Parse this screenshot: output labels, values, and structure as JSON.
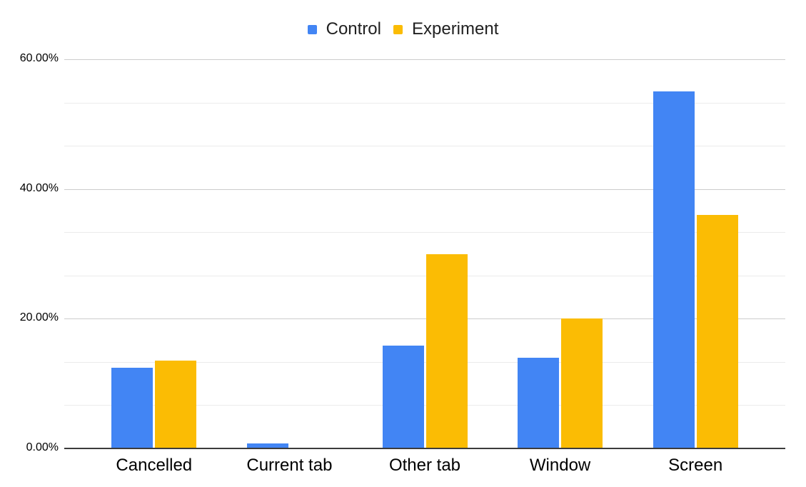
{
  "chart_data": {
    "type": "bar",
    "title": "",
    "xlabel": "",
    "ylabel": "",
    "categories": [
      "Cancelled",
      "Current tab",
      "Other tab",
      "Window",
      "Screen"
    ],
    "series": [
      {
        "name": "Control",
        "color": "#4285F4",
        "values": [
          12.4,
          0.8,
          15.9,
          14.0,
          55.1
        ]
      },
      {
        "name": "Experiment",
        "color": "#FBBC04",
        "values": [
          13.5,
          0.0,
          30.0,
          20.0,
          36.0
        ]
      }
    ],
    "value_unit": "percent",
    "ylim": [
      0,
      60
    ],
    "y_tick_labels": [
      "0.00%",
      "20.00%",
      "40.00%",
      "60.00%"
    ],
    "y_major_step": 20,
    "y_minor_per_major": 3,
    "grid": true,
    "legend_position": "top",
    "colors": {
      "axis_line": "#3c3c3c",
      "major_grid": "#cccccc",
      "minor_grid": "#ebebeb",
      "axis_text": "#000000",
      "legend_text": "#212121",
      "background": "#ffffff"
    }
  }
}
